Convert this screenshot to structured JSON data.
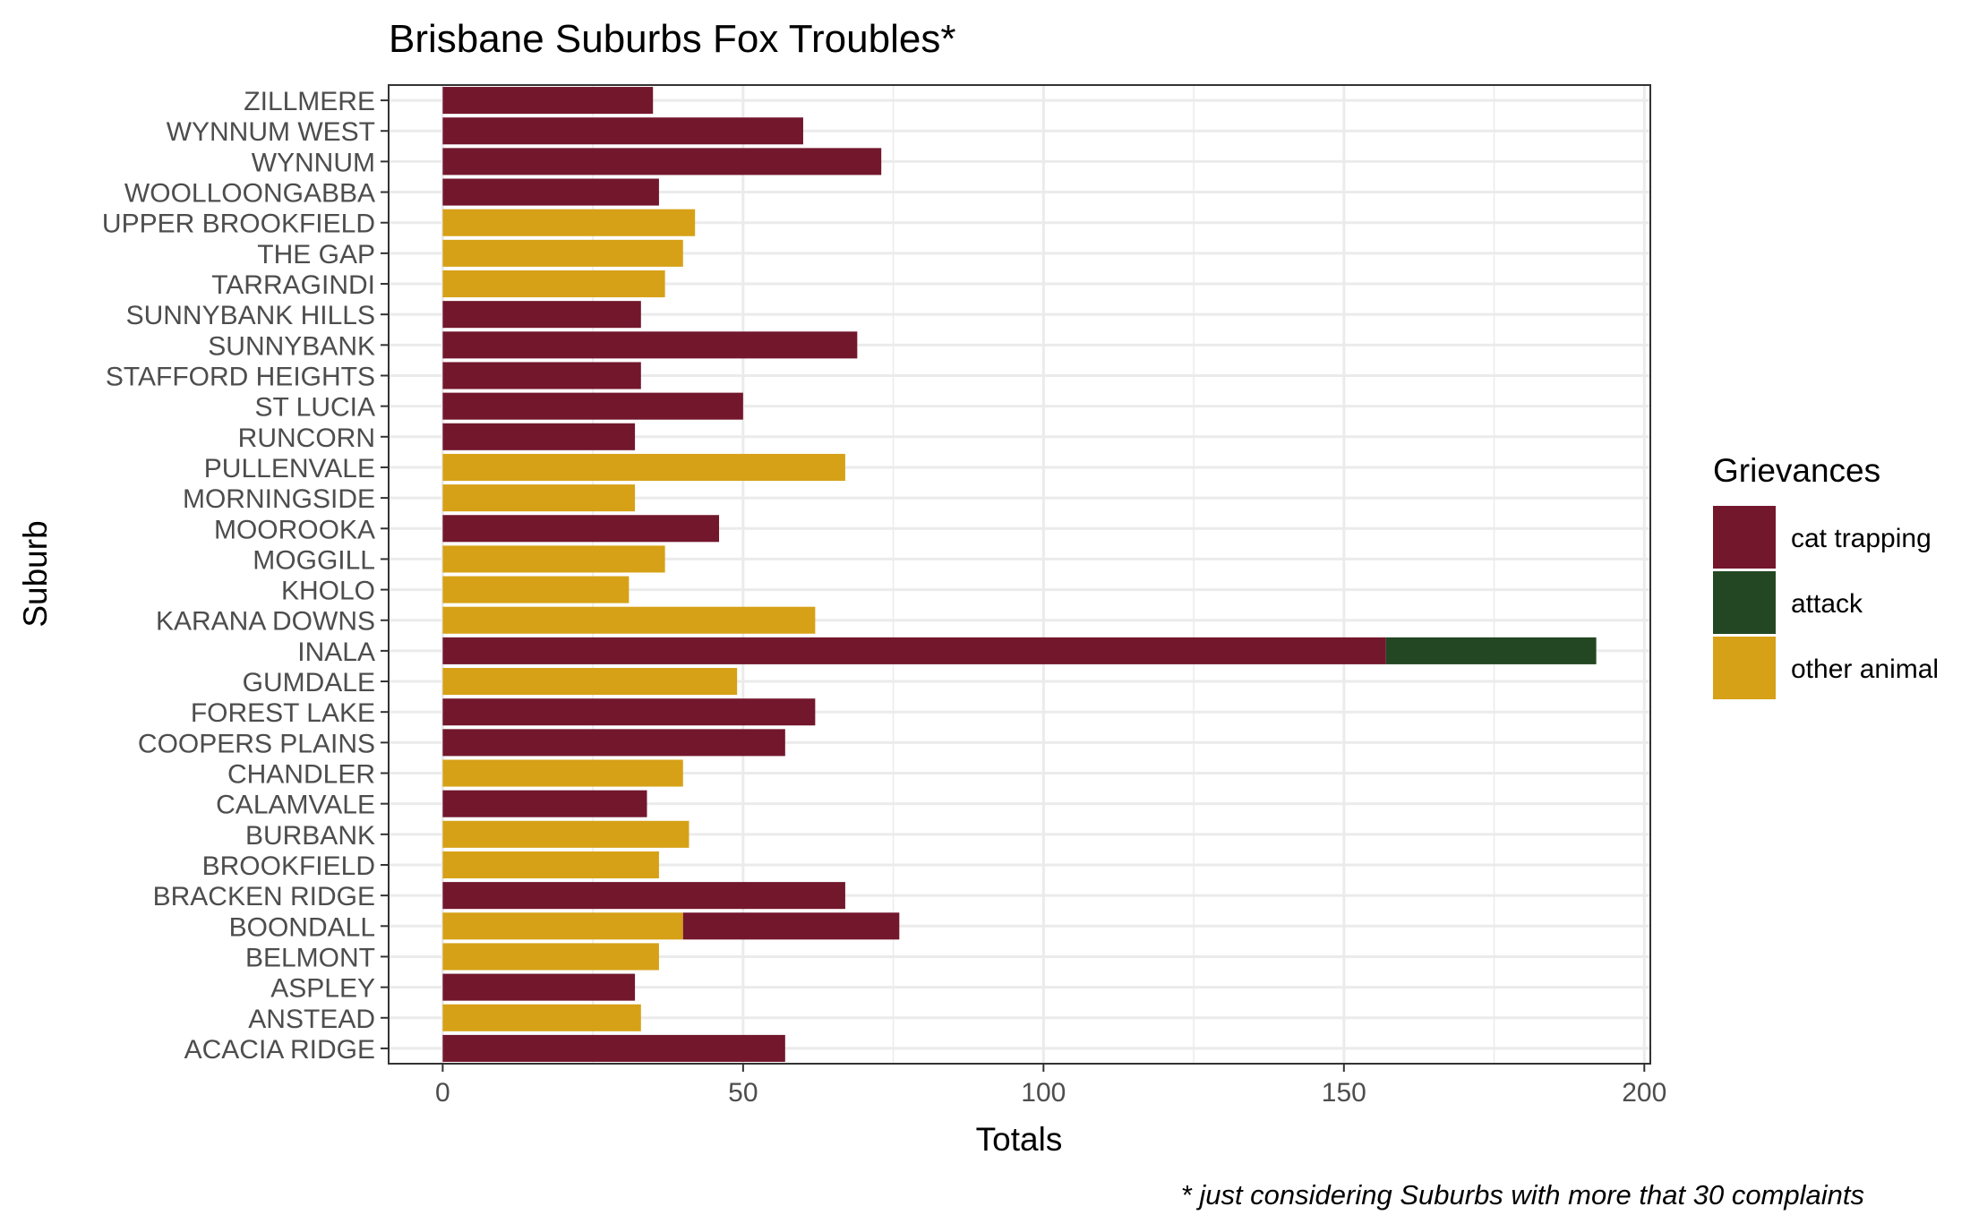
{
  "chart_data": {
    "type": "bar",
    "orientation": "horizontal",
    "stacked": true,
    "title": "Brisbane Suburbs Fox Troubles*",
    "caption": "* just considering Suburbs with more that 30 complaints",
    "xlabel": "Totals",
    "ylabel": "Suburb",
    "xlim": [
      -9,
      201
    ],
    "xticks": [
      0,
      50,
      100,
      150,
      200
    ],
    "grid": true,
    "legend": {
      "title": "Grievances",
      "position": "right",
      "items": [
        {
          "label": "cat trapping",
          "color": "#73172d"
        },
        {
          "label": "attack",
          "color": "#234722"
        },
        {
          "label": "other animal",
          "color": "#d6a117"
        }
      ]
    },
    "categories": [
      "ZILLMERE",
      "WYNNUM WEST",
      "WYNNUM",
      "WOOLLOONGABBA",
      "UPPER BROOKFIELD",
      "THE GAP",
      "TARRAGINDI",
      "SUNNYBANK HILLS",
      "SUNNYBANK",
      "STAFFORD HEIGHTS",
      "ST LUCIA",
      "RUNCORN",
      "PULLENVALE",
      "MORNINGSIDE",
      "MOOROOKA",
      "MOGGILL",
      "KHOLO",
      "KARANA DOWNS",
      "INALA",
      "GUMDALE",
      "FOREST LAKE",
      "COOPERS PLAINS",
      "CHANDLER",
      "CALAMVALE",
      "BURBANK",
      "BROOKFIELD",
      "BRACKEN RIDGE",
      "BOONDALL",
      "BELMONT",
      "ASPLEY",
      "ANSTEAD",
      "ACACIA RIDGE"
    ],
    "series": [
      {
        "name": "other animal",
        "color": "#d6a117",
        "values": [
          0,
          0,
          0,
          0,
          42,
          40,
          37,
          0,
          0,
          0,
          0,
          0,
          67,
          32,
          0,
          37,
          31,
          62,
          0,
          49,
          0,
          0,
          40,
          0,
          41,
          36,
          0,
          40,
          36,
          0,
          33,
          0
        ]
      },
      {
        "name": "cat trapping",
        "color": "#73172d",
        "values": [
          35,
          60,
          73,
          36,
          0,
          0,
          0,
          33,
          69,
          33,
          50,
          32,
          0,
          0,
          46,
          0,
          0,
          0,
          157,
          0,
          62,
          57,
          0,
          34,
          0,
          0,
          67,
          36,
          0,
          32,
          0,
          57
        ]
      },
      {
        "name": "attack",
        "color": "#234722",
        "values": [
          0,
          0,
          0,
          0,
          0,
          0,
          0,
          0,
          0,
          0,
          0,
          0,
          0,
          0,
          0,
          0,
          0,
          0,
          35,
          0,
          0,
          0,
          0,
          0,
          0,
          0,
          0,
          0,
          0,
          0,
          0,
          0
        ]
      }
    ]
  }
}
